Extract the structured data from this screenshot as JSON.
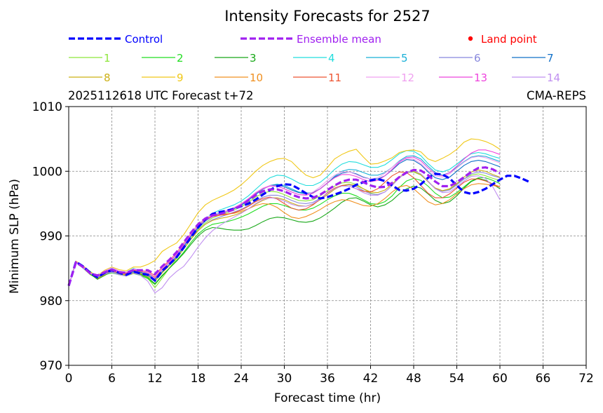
{
  "chart_data": {
    "type": "line",
    "title": "Intensity Forecasts for 2527",
    "subtitle_left": "2025112618 UTC Forecast t+72",
    "subtitle_right": "CMA-REPS",
    "xlabel": "Forecast time (hr)",
    "ylabel": "Minimum SLP (hPa)",
    "xlim": [
      0,
      72
    ],
    "ylim": [
      970,
      1010
    ],
    "xticks": [
      0,
      6,
      12,
      18,
      24,
      30,
      36,
      42,
      48,
      54,
      60,
      66,
      72
    ],
    "yticks": [
      970,
      980,
      990,
      1000,
      1010
    ],
    "grid": true,
    "x": [
      0,
      1,
      2,
      3,
      4,
      5,
      6,
      7,
      8,
      9,
      10,
      11,
      12,
      13,
      14,
      15,
      16,
      17,
      18,
      19,
      20,
      21,
      22,
      23,
      24,
      25,
      26,
      27,
      28,
      29,
      30,
      31,
      32,
      33,
      34,
      35,
      36,
      37,
      38,
      39,
      40,
      41,
      42,
      43,
      44,
      45,
      46,
      47,
      48,
      49,
      50,
      51,
      52,
      53,
      54,
      55,
      56,
      57,
      58,
      59,
      60,
      61,
      62,
      63,
      64,
      65,
      66,
      67,
      68,
      69,
      70,
      71,
      72
    ],
    "control": {
      "name": "Control",
      "color": "#0000ff",
      "values": [
        982.3,
        986.0,
        985.3,
        984.3,
        983.6,
        984.3,
        984.7,
        984.3,
        984.0,
        984.5,
        984.2,
        984.0,
        983.1,
        984.6,
        985.6,
        986.7,
        988.2,
        989.8,
        991.3,
        992.6,
        993.4,
        993.7,
        993.9,
        994.2,
        994.6,
        995.0,
        995.6,
        996.4,
        997.1,
        997.7,
        998.0,
        997.9,
        997.3,
        996.6,
        996.0,
        995.8,
        996.0,
        996.4,
        996.8,
        997.3,
        997.9,
        998.3,
        998.6,
        998.8,
        998.5,
        997.8,
        997.1,
        997.0,
        997.3,
        998.0,
        999.0,
        999.6,
        999.5,
        998.9,
        997.8,
        996.8,
        996.5,
        996.8,
        997.3,
        998.0,
        998.7,
        999.3,
        999.3,
        998.9,
        998.4
      ]
    },
    "mean": {
      "name": "Ensemble mean",
      "color": "#a020f0",
      "values": [
        982.3,
        985.9,
        985.2,
        984.2,
        983.9,
        984.4,
        984.8,
        984.4,
        984.3,
        984.7,
        984.7,
        984.7,
        984.1,
        985.3,
        986.3,
        987.5,
        989.0,
        990.5,
        991.8,
        992.7,
        993.2,
        993.4,
        993.7,
        994.1,
        994.7,
        995.5,
        996.3,
        996.9,
        997.2,
        997.2,
        996.9,
        996.4,
        996.0,
        995.8,
        995.9,
        996.4,
        997.1,
        997.8,
        998.4,
        998.7,
        998.7,
        998.3,
        997.8,
        997.5,
        997.6,
        998.2,
        999.1,
        999.8,
        1000.2,
        1000.1,
        999.4,
        998.4,
        997.7,
        997.7,
        998.3,
        999.1,
        999.9,
        1000.5,
        1000.6,
        1000.3,
        999.7
      ]
    },
    "land_point_label": "Land point",
    "land_point_color": "#ff0000",
    "members": [
      {
        "name": "1",
        "color": "#8ee63a",
        "values": [
          982.3,
          986.0,
          985.0,
          984.0,
          983.5,
          984.2,
          984.6,
          984.1,
          984.0,
          984.4,
          984.0,
          983.5,
          982.0,
          983.5,
          985.0,
          986.5,
          988.0,
          989.6,
          991.0,
          992.0,
          992.8,
          993.2,
          993.6,
          994.0,
          994.5,
          995.2,
          996.0,
          996.6,
          996.9,
          996.8,
          996.4,
          995.9,
          995.5,
          995.4,
          995.6,
          996.2,
          997.0,
          997.7,
          998.2,
          998.3,
          998.0,
          997.3,
          996.6,
          996.4,
          996.8,
          997.8,
          999.0,
          999.8,
          999.9,
          999.4,
          998.4,
          997.3,
          996.9,
          997.2,
          998.0,
          998.8,
          999.4,
          999.6,
          999.3,
          998.9,
          998.6
        ]
      },
      {
        "name": "2",
        "color": "#22dd22",
        "values": [
          982.3,
          985.9,
          985.2,
          984.5,
          983.6,
          984.0,
          984.3,
          984.0,
          983.8,
          984.2,
          983.9,
          983.4,
          982.5,
          983.8,
          985.0,
          986.2,
          987.5,
          989.0,
          990.3,
          991.2,
          991.8,
          992.0,
          992.2,
          992.5,
          992.9,
          993.4,
          994.0,
          994.6,
          995.0,
          995.0,
          994.7,
          994.3,
          994.0,
          994.0,
          994.3,
          994.9,
          995.6,
          996.2,
          996.6,
          996.6,
          996.2,
          995.6,
          995.0,
          994.9,
          995.3,
          996.2,
          997.5,
          998.5,
          998.9,
          998.6,
          997.7,
          996.6,
          995.9,
          996.0,
          996.7,
          997.6,
          998.5,
          999.0,
          999.0,
          998.6,
          998.1
        ]
      },
      {
        "name": "3",
        "color": "#18a818",
        "values": [
          982.3,
          986.0,
          985.1,
          984.1,
          983.3,
          983.9,
          984.5,
          984.2,
          983.9,
          984.3,
          984.1,
          983.6,
          982.6,
          983.9,
          985.0,
          986.1,
          987.3,
          988.7,
          990.0,
          990.9,
          991.3,
          991.2,
          991.0,
          990.9,
          990.9,
          991.1,
          991.6,
          992.2,
          992.7,
          992.9,
          992.8,
          992.5,
          992.2,
          992.1,
          992.3,
          992.8,
          993.5,
          994.3,
          995.2,
          995.8,
          995.9,
          995.4,
          994.8,
          994.5,
          994.8,
          995.5,
          996.5,
          997.3,
          997.7,
          997.4,
          996.5,
          995.5,
          995.0,
          995.3,
          996.2,
          997.4,
          998.4,
          998.9,
          998.6,
          998.0,
          997.3
        ]
      },
      {
        "name": "4",
        "color": "#22dddd",
        "values": [
          982.3,
          986.0,
          985.3,
          984.3,
          983.8,
          984.6,
          985.0,
          984.5,
          984.4,
          985.0,
          984.6,
          984.1,
          983.6,
          984.8,
          985.9,
          987.1,
          988.6,
          990.1,
          991.5,
          992.6,
          993.5,
          994.0,
          994.4,
          994.8,
          995.4,
          996.2,
          997.2,
          998.2,
          999.0,
          999.4,
          999.3,
          998.8,
          998.2,
          997.8,
          997.8,
          998.3,
          999.2,
          1000.3,
          1001.1,
          1001.5,
          1001.4,
          1001.0,
          1000.6,
          1000.6,
          1001.0,
          1001.8,
          1002.7,
          1003.2,
          1003.1,
          1002.4,
          1001.2,
          1000.2,
          999.9,
          1000.3,
          1001.1,
          1002.0,
          1002.7,
          1002.9,
          1002.7,
          1002.3,
          1002.0
        ]
      },
      {
        "name": "5",
        "color": "#18b0d8",
        "values": [
          982.3,
          985.9,
          985.4,
          984.4,
          983.7,
          984.1,
          984.5,
          984.2,
          984.1,
          984.6,
          984.3,
          983.8,
          983.0,
          984.3,
          985.5,
          986.8,
          988.3,
          989.9,
          991.2,
          992.3,
          993.1,
          993.5,
          993.8,
          994.2,
          994.7,
          995.5,
          996.4,
          997.2,
          997.8,
          998.0,
          997.8,
          997.3,
          996.8,
          996.6,
          996.7,
          997.3,
          998.2,
          999.2,
          1000.0,
          1000.3,
          1000.2,
          999.8,
          999.4,
          999.4,
          999.8,
          1000.6,
          1001.6,
          1002.3,
          1002.4,
          1001.9,
          1000.8,
          999.8,
          999.4,
          999.8,
          1000.6,
          1001.5,
          1002.2,
          1002.4,
          1002.3,
          1001.9,
          1001.5
        ]
      },
      {
        "name": "6",
        "color": "#8888dd",
        "values": [
          982.3,
          986.0,
          985.0,
          984.2,
          983.6,
          984.2,
          984.5,
          984.3,
          984.1,
          984.6,
          984.3,
          983.9,
          983.2,
          984.4,
          985.5,
          986.6,
          988.0,
          989.5,
          990.8,
          991.8,
          992.5,
          992.9,
          993.3,
          993.7,
          994.1,
          994.7,
          995.4,
          996.0,
          996.3,
          996.3,
          996.0,
          995.5,
          995.1,
          995.0,
          995.2,
          995.8,
          996.6,
          997.3,
          997.8,
          997.9,
          997.6,
          997.0,
          996.5,
          996.4,
          996.8,
          997.8,
          999.0,
          999.8,
          1000.0,
          999.5,
          998.4,
          997.3,
          996.9,
          997.1,
          997.9,
          998.8,
          999.6,
          999.9,
          999.7,
          999.3,
          999.0
        ]
      },
      {
        "name": "7",
        "color": "#1070c8",
        "values": [
          982.3,
          986.0,
          985.2,
          984.4,
          983.6,
          984.1,
          984.7,
          984.2,
          984.0,
          984.5,
          984.4,
          984.0,
          983.3,
          984.5,
          985.6,
          986.8,
          988.3,
          989.9,
          991.3,
          992.3,
          993.0,
          993.4,
          993.8,
          994.2,
          994.8,
          995.6,
          996.5,
          997.3,
          997.8,
          997.9,
          997.6,
          997.1,
          996.7,
          996.5,
          996.7,
          997.3,
          998.2,
          999.1,
          999.7,
          999.9,
          999.6,
          999.1,
          998.8,
          998.8,
          999.3,
          1000.2,
          1001.2,
          1001.8,
          1001.7,
          1001.0,
          999.9,
          999.0,
          998.7,
          999.1,
          1000.0,
          1000.9,
          1001.5,
          1001.7,
          1001.5,
          1001.1,
          1000.7
        ]
      },
      {
        "name": "8",
        "color": "#ccb015",
        "values": [
          982.3,
          986.0,
          985.2,
          984.3,
          983.4,
          984.0,
          984.6,
          984.3,
          983.9,
          984.2,
          984.2,
          983.8,
          983.0,
          984.3,
          985.4,
          986.6,
          988.0,
          989.5,
          990.8,
          991.8,
          992.4,
          992.7,
          992.9,
          993.2,
          993.6,
          994.2,
          994.9,
          995.5,
          995.9,
          995.9,
          995.6,
          995.1,
          994.7,
          994.6,
          994.9,
          995.6,
          996.4,
          997.2,
          997.8,
          998.0,
          997.8,
          997.3,
          996.8,
          996.7,
          997.1,
          998.0,
          999.1,
          999.9,
          1000.0,
          999.5,
          998.4,
          997.4,
          997.0,
          997.3,
          998.1,
          999.1,
          999.9,
          1000.2,
          1000.0,
          999.5,
          999.1
        ]
      },
      {
        "name": "9",
        "color": "#f0c818",
        "values": [
          982.3,
          986.1,
          985.4,
          984.4,
          983.9,
          984.7,
          985.2,
          984.8,
          984.6,
          985.2,
          985.2,
          985.6,
          986.2,
          987.6,
          988.3,
          988.9,
          990.2,
          991.9,
          993.6,
          994.8,
          995.5,
          996.0,
          996.5,
          997.1,
          997.9,
          998.9,
          1000.0,
          1000.9,
          1001.5,
          1001.9,
          1002.0,
          1001.5,
          1000.4,
          999.4,
          999.0,
          999.4,
          1000.6,
          1001.9,
          1002.6,
          1003.1,
          1003.4,
          1002.2,
          1001.1,
          1001.2,
          1001.6,
          1002.1,
          1002.9,
          1003.2,
          1003.3,
          1003.0,
          1001.9,
          1001.5,
          1002.0,
          1002.6,
          1003.4,
          1004.5,
          1005.0,
          1004.9,
          1004.6,
          1004.1,
          1003.4
        ]
      },
      {
        "name": "10",
        "color": "#f09020",
        "values": [
          982.3,
          986.0,
          985.2,
          984.3,
          983.7,
          984.3,
          984.6,
          984.2,
          984.1,
          984.6,
          984.5,
          984.3,
          983.6,
          984.9,
          986.0,
          987.3,
          988.8,
          990.4,
          991.8,
          992.7,
          993.2,
          993.3,
          993.4,
          993.5,
          993.8,
          994.2,
          994.7,
          995.0,
          994.9,
          994.4,
          993.6,
          992.9,
          992.7,
          993.0,
          993.5,
          994.1,
          994.8,
          995.3,
          995.6,
          995.5,
          995.1,
          994.7,
          994.6,
          995.0,
          995.8,
          996.8,
          997.6,
          997.8,
          997.3,
          996.3,
          995.3,
          994.8,
          995.0,
          995.6,
          996.5,
          997.3,
          997.9,
          998.1,
          998.0,
          997.8,
          997.6
        ]
      },
      {
        "name": "11",
        "color": "#ee5533",
        "values": [
          982.3,
          985.9,
          985.2,
          984.3,
          983.8,
          984.4,
          984.7,
          984.3,
          984.2,
          984.7,
          984.7,
          984.5,
          983.9,
          985.2,
          986.2,
          987.4,
          988.9,
          990.4,
          991.7,
          992.6,
          993.0,
          993.2,
          993.3,
          993.6,
          994.0,
          994.6,
          995.3,
          995.8,
          996.0,
          995.7,
          995.0,
          994.3,
          994.0,
          994.2,
          994.8,
          995.7,
          996.7,
          997.4,
          997.8,
          997.7,
          997.3,
          996.9,
          996.8,
          997.3,
          998.3,
          999.3,
          999.9,
          999.8,
          999.0,
          997.8,
          996.6,
          995.9,
          995.9,
          996.5,
          997.4,
          998.3,
          998.8,
          998.8,
          998.5,
          998.0,
          997.6
        ]
      },
      {
        "name": "12",
        "color": "#f0a0f0",
        "values": [
          982.3,
          986.0,
          985.3,
          984.3,
          983.8,
          984.6,
          985.1,
          984.6,
          984.4,
          984.9,
          984.7,
          984.4,
          983.8,
          985.0,
          986.1,
          987.3,
          988.8,
          990.3,
          991.7,
          992.7,
          993.3,
          993.7,
          994.0,
          994.4,
          995.0,
          995.8,
          996.7,
          997.4,
          997.8,
          997.7,
          997.3,
          996.8,
          996.4,
          996.4,
          996.8,
          997.6,
          998.6,
          999.4,
          999.9,
          999.9,
          999.5,
          999.0,
          998.8,
          999.0,
          999.7,
          1000.6,
          1001.5,
          1002.0,
          1001.9,
          1001.2,
          1000.1,
          999.3,
          999.1,
          999.6,
          1000.5,
          1001.4,
          1002.1,
          1002.3,
          1002.1,
          1001.7,
          1001.3
        ]
      },
      {
        "name": "13",
        "color": "#ee44dd",
        "values": [
          982.3,
          986.0,
          985.3,
          984.3,
          983.7,
          984.5,
          984.9,
          984.5,
          984.3,
          984.8,
          984.6,
          984.3,
          983.5,
          984.8,
          985.9,
          987.1,
          988.6,
          990.1,
          991.4,
          992.4,
          993.0,
          993.4,
          993.8,
          994.3,
          994.9,
          995.7,
          996.6,
          997.3,
          997.7,
          997.7,
          997.3,
          996.8,
          996.4,
          996.3,
          996.6,
          997.3,
          998.2,
          999.0,
          999.5,
          999.5,
          999.2,
          998.7,
          998.4,
          998.6,
          999.3,
          1000.3,
          1001.4,
          1002.1,
          1002.2,
          1001.6,
          1000.5,
          999.6,
          999.3,
          999.8,
          1000.8,
          1001.9,
          1002.8,
          1003.3,
          1003.3,
          1003.0,
          1002.6
        ]
      },
      {
        "name": "14",
        "color": "#c090f0",
        "values": [
          982.3,
          985.9,
          985.1,
          984.2,
          983.7,
          984.1,
          984.4,
          984.0,
          983.8,
          984.3,
          983.9,
          983.0,
          981.2,
          982.0,
          983.5,
          984.5,
          985.3,
          986.7,
          988.3,
          989.7,
          990.8,
          991.6,
          992.3,
          992.9,
          993.5,
          994.2,
          995.0,
          995.6,
          995.9,
          995.8,
          995.4,
          994.9,
          994.6,
          994.6,
          995.0,
          995.7,
          996.6,
          997.3,
          997.7,
          997.7,
          997.3,
          996.7,
          996.3,
          996.3,
          996.8,
          997.8,
          999.0,
          999.9,
          1000.1,
          999.6,
          998.5,
          997.3,
          996.7,
          996.8,
          997.6,
          998.5,
          999.2,
          999.3,
          998.9,
          997.6,
          995.6
        ]
      }
    ]
  }
}
